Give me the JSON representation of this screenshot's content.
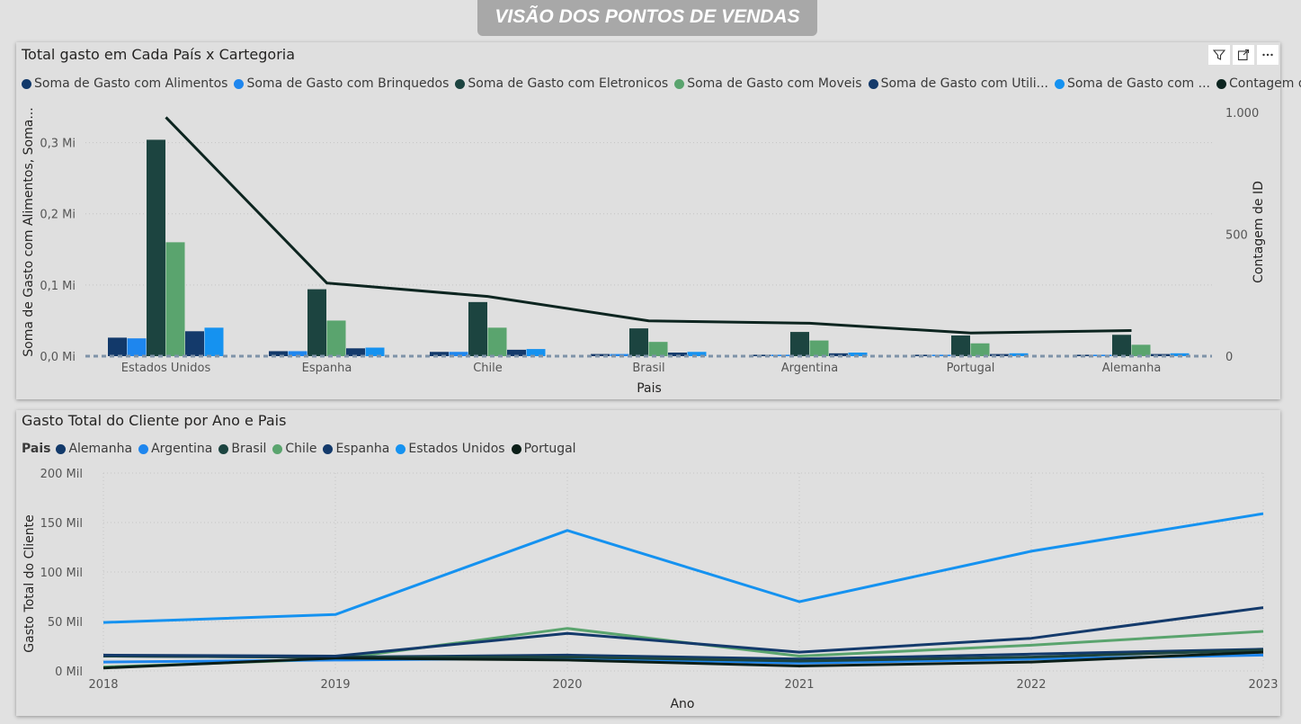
{
  "header": {
    "title": "VISÃO DOS PONTOS DE VENDAS"
  },
  "colors": {
    "alimentos": "#12396a",
    "brinquedos": "#1e86ee",
    "eletronicos": "#1c4440",
    "moveis": "#5aa46e",
    "utilidades": "#143a6b",
    "outros": "#1592f0",
    "contagem": "#0d2520",
    "alemanha": "#12396a",
    "argentina": "#1e86ee",
    "brasil": "#1c4440",
    "chile": "#5aa46e",
    "espanha": "#143a6b",
    "estados_unidos": "#1592f0",
    "portugal": "#0b1e18"
  },
  "toolbar": {
    "icons": [
      "filter-icon",
      "focus-mode-icon",
      "more-options-icon"
    ]
  },
  "chart_data": [
    {
      "type": "bar",
      "title": "Total gasto em Cada País x Cartegoria",
      "xlabel": "Pais",
      "ylabel": "Soma de Gasto com Alimentos, Soma...",
      "y2label": "Contagem de ID",
      "legend": [
        "Soma de Gasto com Alimentos",
        "Soma de Gasto com Brinquedos",
        "Soma de Gasto com Eletronicos",
        "Soma de Gasto com Moveis",
        "Soma de Gasto com Utili...",
        "Soma de Gasto com ...",
        "Contagem de ID"
      ],
      "ylim": [
        0,
        350000
      ],
      "y_ticks": [
        0,
        100000,
        200000,
        300000
      ],
      "y_tick_labels": [
        "0,0 Mi",
        "0,1 Mi",
        "0,2 Mi",
        "0,3 Mi"
      ],
      "y2lim": [
        0,
        1000
      ],
      "y2_ticks": [
        0,
        500,
        1000
      ],
      "y2_tick_labels": [
        "0",
        "500",
        "1.000"
      ],
      "categories": [
        "Estados Unidos",
        "Espanha",
        "Chile",
        "Brasil",
        "Argentina",
        "Portugal",
        "Alemanha"
      ],
      "series": [
        {
          "name": "Soma de Gasto com Alimentos",
          "values": [
            26000,
            7000,
            6000,
            3000,
            2000,
            2000,
            2000
          ]
        },
        {
          "name": "Soma de Gasto com Brinquedos",
          "values": [
            25000,
            7000,
            6000,
            3000,
            2000,
            2000,
            2000
          ]
        },
        {
          "name": "Soma de Gasto com Eletronicos",
          "values": [
            304000,
            94000,
            76000,
            39000,
            34000,
            29000,
            30000
          ]
        },
        {
          "name": "Soma de Gasto com Moveis",
          "values": [
            160000,
            50000,
            40000,
            20000,
            22000,
            18000,
            16000
          ]
        },
        {
          "name": "Soma de Gasto com Utili...",
          "values": [
            35000,
            11000,
            9000,
            5000,
            4000,
            3000,
            3000
          ]
        },
        {
          "name": "Soma de Gasto com ...",
          "values": [
            40000,
            12000,
            10000,
            6000,
            5000,
            4000,
            4000
          ]
        }
      ],
      "line": {
        "name": "Contagem de ID",
        "values": [
          980,
          300,
          245,
          145,
          135,
          95,
          105
        ]
      }
    },
    {
      "type": "line",
      "title": "Gasto Total do Cliente por Ano e Pais",
      "xlabel": "Ano",
      "ylabel": "Gasto Total do Cliente",
      "legend_title": "Pais",
      "x": [
        2018,
        2019,
        2020,
        2021,
        2022,
        2023
      ],
      "x_tick_labels": [
        "2018",
        "2019",
        "2020",
        "2021",
        "2022",
        "2023"
      ],
      "ylim": [
        0,
        200000
      ],
      "y_ticks": [
        0,
        50000,
        100000,
        150000,
        200000
      ],
      "y_tick_labels": [
        "0 Mil",
        "50 Mil",
        "100 Mil",
        "150 Mil",
        "200 Mil"
      ],
      "series": [
        {
          "name": "Alemanha",
          "values": [
            15000,
            14000,
            16000,
            12000,
            17000,
            22000
          ]
        },
        {
          "name": "Argentina",
          "values": [
            9000,
            11000,
            13000,
            8000,
            12000,
            16000
          ]
        },
        {
          "name": "Brasil",
          "values": [
            15000,
            14000,
            14000,
            10000,
            14000,
            21000
          ]
        },
        {
          "name": "Chile",
          "values": [
            4000,
            12000,
            43000,
            15000,
            26000,
            40000
          ]
        },
        {
          "name": "Espanha",
          "values": [
            16000,
            15000,
            38000,
            19000,
            33000,
            64000
          ]
        },
        {
          "name": "Estados Unidos",
          "values": [
            49000,
            57000,
            142000,
            70000,
            121000,
            159000
          ]
        },
        {
          "name": "Portugal",
          "values": [
            3000,
            13000,
            11000,
            5000,
            9000,
            19000
          ]
        }
      ]
    }
  ]
}
